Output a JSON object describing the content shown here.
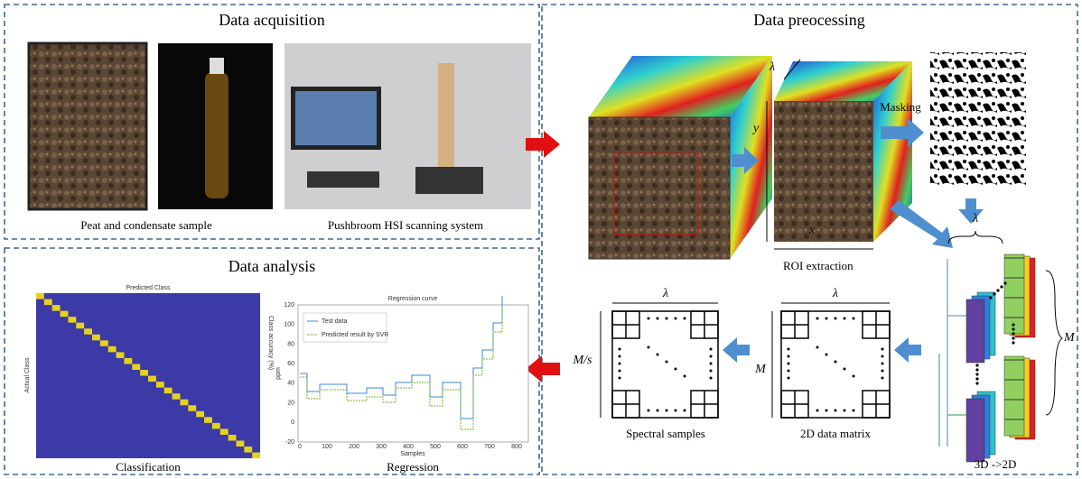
{
  "acquisition": {
    "title": "Data acquisition",
    "captions": [
      "Peat and condensate sample",
      "Pushbroom HSI scanning system"
    ]
  },
  "preprocessing": {
    "title": "Data preocessing",
    "labels": {
      "masking": "Masking",
      "roi": "ROI extraction",
      "lambda": "λ",
      "y": "y",
      "x": "x",
      "conversion": "3D ->2D",
      "m": "M",
      "matrix": "2D data matrix",
      "samples": "Spectral samples",
      "ms": "M/s"
    }
  },
  "analysis": {
    "title": "Data analysis",
    "captions": [
      "Classification",
      "Regression"
    ],
    "classification": {
      "title": "Predicted Class",
      "ylabel": "Actual Class",
      "y2label": "Class accuracy (%)"
    },
    "regression": {
      "title": "Regression curve",
      "legend": [
        "Test data",
        "Predicted result by SVR"
      ],
      "ylabel": "ppm",
      "xlabel": "Samples",
      "yticks": [
        "120",
        "100",
        "80",
        "60",
        "40",
        "20",
        "0",
        "-20"
      ],
      "xticks": [
        "0",
        "100",
        "200",
        "300",
        "400",
        "500",
        "600",
        "700",
        "800"
      ]
    }
  }
}
